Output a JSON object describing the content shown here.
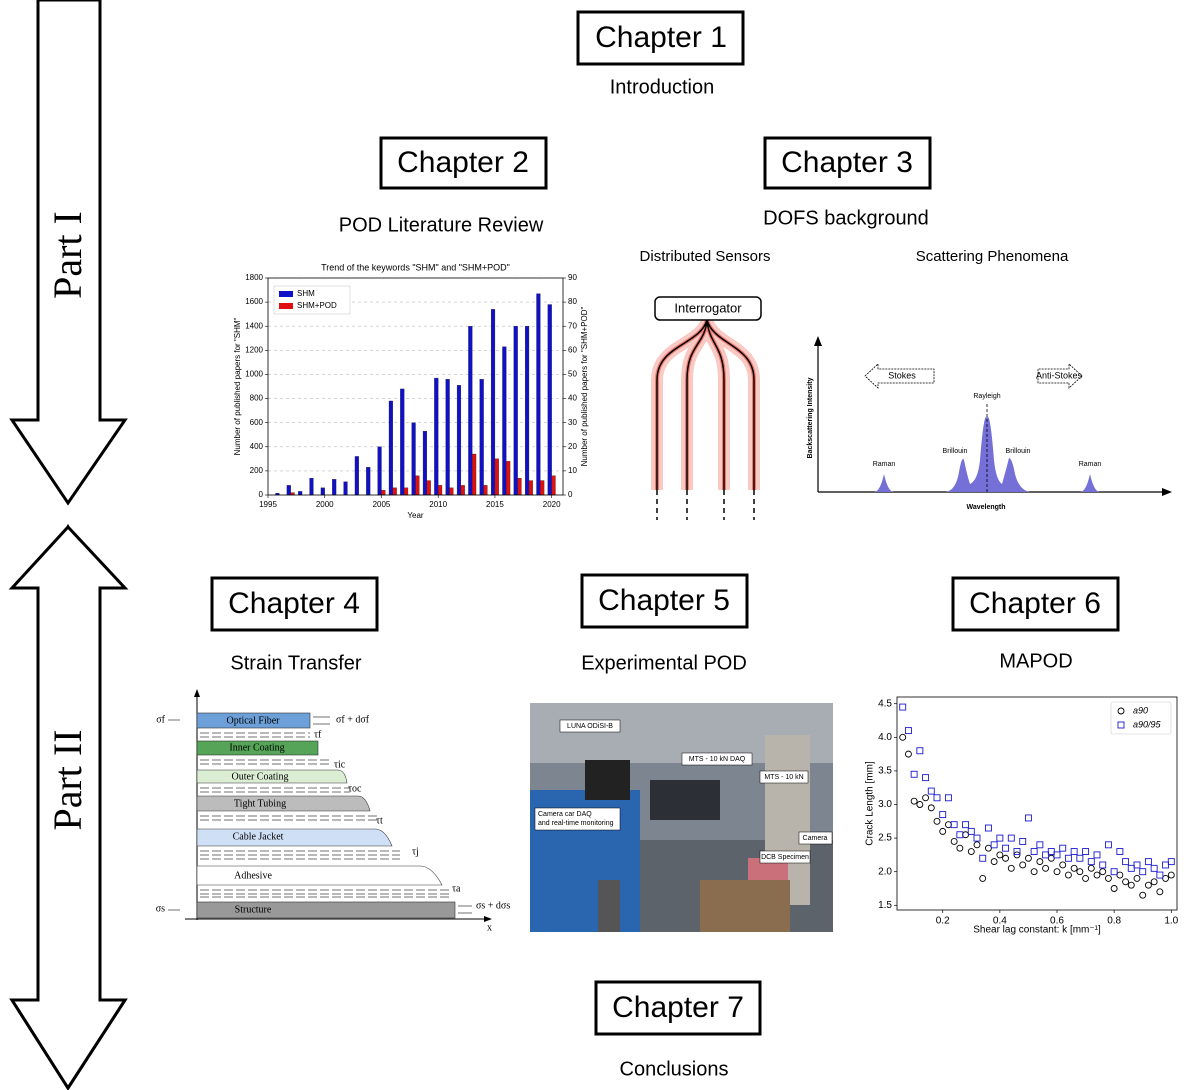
{
  "parts": [
    "Part I",
    "Part II"
  ],
  "chapters": [
    {
      "title": "Chapter 1",
      "subtitle": "Introduction"
    },
    {
      "title": "Chapter 2",
      "subtitle": "POD Literature Review"
    },
    {
      "title": "Chapter 3",
      "subtitle": "DOFS background"
    },
    {
      "title": "Chapter 4",
      "subtitle": "Strain Transfer"
    },
    {
      "title": "Chapter 5",
      "subtitle": "Experimental POD"
    },
    {
      "title": "Chapter 6",
      "subtitle": "MAPOD"
    },
    {
      "title": "Chapter 7",
      "subtitle": "Conclusions"
    }
  ],
  "distributed_sensors": {
    "title": "Distributed Sensors",
    "interrogator": "Interrogator"
  },
  "scattering": {
    "title": "Scattering Phenomena",
    "stokes": "Stokes",
    "anti_stokes": "Anti-Stokes",
    "rayleigh": "Rayleigh",
    "brillouin_left": "Brillouin",
    "brillouin_right": "Brillouin",
    "raman_left": "Raman",
    "raman_right": "Raman",
    "y_label": "Backscattering Intensity",
    "x_label": "Wavelength"
  },
  "strain_transfer": {
    "layers": [
      "Optical Fiber",
      "Inner Coating",
      "Outer Coating",
      "Tight Tubing",
      "Cable Jacket",
      "Adhesive",
      "Structure"
    ],
    "sigma_f": "σf",
    "sigma_f_d": "σf + dσf",
    "tau_f": "τf",
    "tau_ic": "τic",
    "tau_oc": "τoc",
    "tau_t": "τt",
    "tau_j": "τj",
    "tau_a": "τa",
    "sigma_s": "σs",
    "sigma_s_d": "σs + dσs",
    "x_axis": "x"
  },
  "photo": {
    "labels": [
      "LUNA ODiSI-B",
      "MTS - 10 kN DAQ",
      "MTS - 10 kN",
      "Camera car DAQ",
      "and real-time  monitoring",
      "DCB Specimen",
      "Camera"
    ]
  },
  "chart_data": [
    {
      "type": "bar",
      "title": "Trend of the keywords \"SHM\" and \"SHM+POD\"",
      "x_label": "Year",
      "y_label": "Number of published papers for \"SHM\"",
      "y2_label": "Number of published papers for \"SHM+POD\"",
      "x": [
        1996,
        1997,
        1998,
        1999,
        2000,
        2001,
        2002,
        2003,
        2004,
        2005,
        2006,
        2007,
        2008,
        2009,
        2010,
        2011,
        2012,
        2013,
        2014,
        2015,
        2016,
        2017,
        2018,
        2019,
        2020
      ],
      "series": [
        {
          "name": "SHM",
          "color": "#1010c8",
          "values": [
            15,
            80,
            30,
            140,
            60,
            130,
            110,
            320,
            230,
            400,
            780,
            880,
            600,
            530,
            970,
            960,
            910,
            1400,
            960,
            1540,
            1230,
            1400,
            1400,
            1670,
            1580
          ]
        },
        {
          "name": "SHM+POD",
          "color": "#e01010",
          "axis": "y2",
          "values": [
            0,
            1,
            0,
            0,
            0,
            0,
            0,
            0,
            0,
            2,
            3,
            3,
            8,
            6,
            4,
            3,
            4,
            17,
            4,
            15,
            14,
            7,
            6,
            6,
            8
          ]
        }
      ],
      "xlim": [
        1995,
        2021
      ],
      "xticks": [
        1995,
        2000,
        2005,
        2010,
        2015,
        2020
      ],
      "ylim": [
        0,
        1800
      ],
      "yticks": [
        0,
        200,
        400,
        600,
        800,
        1000,
        1200,
        1400,
        1600,
        1800
      ],
      "y2lim": [
        0,
        90
      ],
      "y2ticks": [
        0,
        10,
        20,
        30,
        40,
        50,
        60,
        70,
        80,
        90
      ],
      "grid": true,
      "legend": "upper left"
    },
    {
      "type": "scatter",
      "x_label": "Shear lag constant: k [mm⁻¹]",
      "y_label": "Crack Length [mm]",
      "x": [
        0.06,
        0.08,
        0.1,
        0.12,
        0.14,
        0.16,
        0.18,
        0.2,
        0.22,
        0.24,
        0.26,
        0.28,
        0.3,
        0.32,
        0.34,
        0.36,
        0.38,
        0.4,
        0.42,
        0.44,
        0.46,
        0.48,
        0.5,
        0.52,
        0.54,
        0.56,
        0.58,
        0.6,
        0.62,
        0.64,
        0.66,
        0.68,
        0.7,
        0.72,
        0.74,
        0.76,
        0.78,
        0.8,
        0.82,
        0.84,
        0.86,
        0.88,
        0.9,
        0.92,
        0.94,
        0.96,
        0.98,
        1.0
      ],
      "series": [
        {
          "name": "a90",
          "color": "#000000",
          "marker": "circle",
          "values": [
            4.0,
            3.75,
            3.05,
            3.0,
            3.1,
            2.95,
            2.75,
            2.6,
            2.7,
            2.45,
            2.35,
            2.55,
            2.3,
            2.4,
            1.9,
            2.35,
            2.15,
            2.25,
            2.2,
            2.05,
            2.25,
            2.1,
            2.2,
            2.0,
            2.15,
            2.05,
            2.2,
            2.0,
            2.1,
            1.95,
            2.05,
            2.0,
            1.9,
            2.05,
            1.95,
            2.0,
            1.9,
            1.75,
            1.95,
            1.85,
            1.8,
            1.9,
            1.65,
            1.8,
            1.85,
            1.7,
            1.9,
            1.95
          ]
        },
        {
          "name": "a90/95",
          "color": "#1a1ad0",
          "marker": "square",
          "values": [
            4.45,
            4.1,
            3.45,
            3.8,
            3.4,
            3.2,
            3.1,
            2.85,
            3.1,
            2.7,
            2.55,
            2.7,
            2.6,
            2.5,
            2.2,
            2.65,
            2.4,
            2.5,
            2.35,
            2.5,
            2.3,
            2.45,
            2.8,
            2.3,
            2.4,
            2.25,
            2.3,
            2.25,
            2.35,
            2.2,
            2.3,
            2.2,
            2.3,
            2.15,
            2.25,
            2.1,
            2.4,
            2.0,
            2.3,
            2.15,
            2.05,
            2.1,
            2.0,
            2.15,
            2.05,
            1.95,
            2.1,
            2.15
          ]
        }
      ],
      "xlim": [
        0.04,
        1.02
      ],
      "xticks": [
        0.2,
        0.4,
        0.6,
        0.8,
        {
          "value": 1,
          "label": "1.0"
        }
      ],
      "ylim": [
        1.43,
        4.6
      ],
      "yticks": [
        1.5,
        {
          "value": 2,
          "label": "2.0"
        },
        2.5,
        {
          "value": 3,
          "label": "3.0"
        },
        3.5,
        {
          "value": 4,
          "label": "4.0"
        },
        4.5
      ],
      "grid": false,
      "legend": "upper right"
    }
  ]
}
